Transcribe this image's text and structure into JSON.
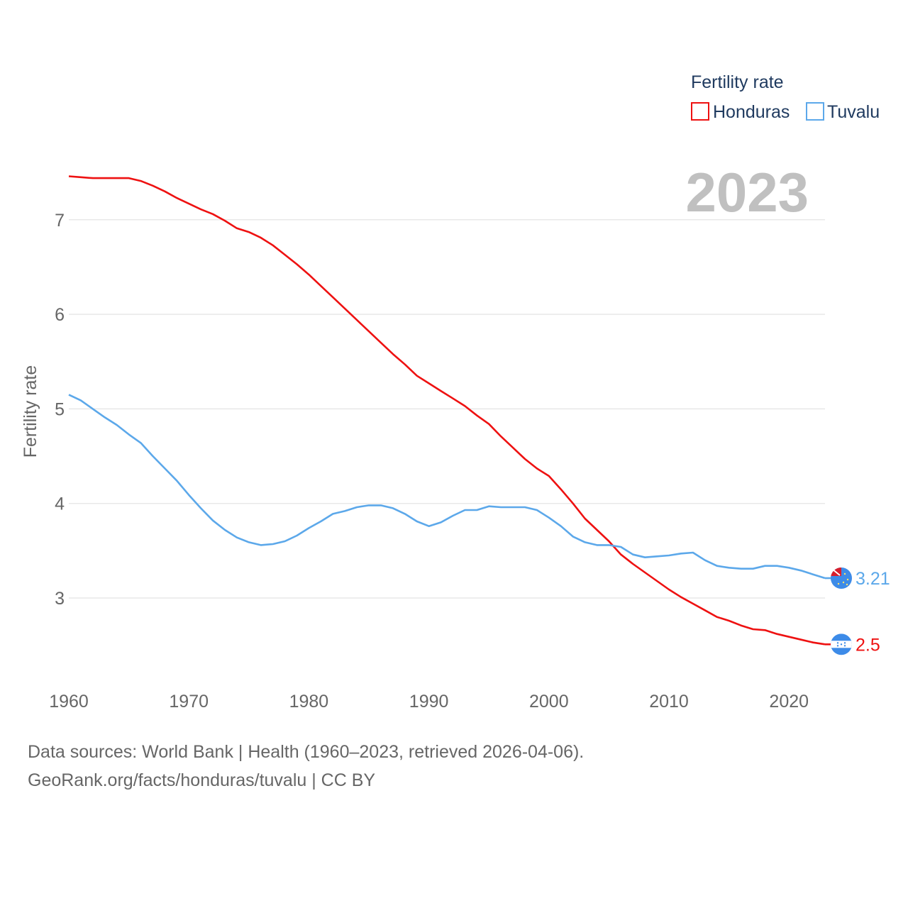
{
  "legend": {
    "title": "Fertility rate",
    "items": [
      {
        "name": "Honduras",
        "color": "#ee1111"
      },
      {
        "name": "Tuvalu",
        "color": "#5ca8ea"
      }
    ]
  },
  "year_label": "2023",
  "footer": {
    "line1": "Data sources: World Bank | Health (1960–2023, retrieved 2026-04-06).",
    "line2": "GeoRank.org/facts/honduras/tuvalu | CC BY"
  },
  "chart_data": {
    "type": "line",
    "title": "",
    "xlabel": "",
    "ylabel": "Fertility rate",
    "xlim": [
      1960,
      2023
    ],
    "ylim": [
      2.2,
      7.6
    ],
    "x_ticks": [
      "1960",
      "1970",
      "1980",
      "1990",
      "2000",
      "2010",
      "2020"
    ],
    "y_ticks": [
      "3",
      "4",
      "5",
      "6",
      "7"
    ],
    "grid": true,
    "legend_position": "top-right",
    "x": [
      1960,
      1961,
      1962,
      1963,
      1964,
      1965,
      1966,
      1967,
      1968,
      1969,
      1970,
      1971,
      1972,
      1973,
      1974,
      1975,
      1976,
      1977,
      1978,
      1979,
      1980,
      1981,
      1982,
      1983,
      1984,
      1985,
      1986,
      1987,
      1988,
      1989,
      1990,
      1991,
      1992,
      1993,
      1994,
      1995,
      1996,
      1997,
      1998,
      1999,
      2000,
      2001,
      2002,
      2003,
      2004,
      2005,
      2006,
      2007,
      2008,
      2009,
      2010,
      2011,
      2012,
      2013,
      2014,
      2015,
      2016,
      2017,
      2018,
      2019,
      2020,
      2021,
      2022,
      2023
    ],
    "series": [
      {
        "name": "Honduras",
        "color": "#ee1111",
        "end_label": "2.5",
        "values": [
          7.46,
          7.45,
          7.44,
          7.44,
          7.44,
          7.44,
          7.41,
          7.36,
          7.3,
          7.23,
          7.17,
          7.11,
          7.06,
          6.99,
          6.91,
          6.87,
          6.81,
          6.73,
          6.63,
          6.53,
          6.42,
          6.3,
          6.18,
          6.06,
          5.94,
          5.82,
          5.7,
          5.58,
          5.47,
          5.35,
          5.27,
          5.19,
          5.11,
          5.03,
          4.93,
          4.84,
          4.71,
          4.59,
          4.47,
          4.37,
          4.29,
          4.15,
          4.0,
          3.84,
          3.72,
          3.6,
          3.46,
          3.36,
          3.27,
          3.18,
          3.09,
          3.01,
          2.94,
          2.87,
          2.8,
          2.76,
          2.71,
          2.67,
          2.66,
          2.62,
          2.59,
          2.56,
          2.53,
          2.51
        ]
      },
      {
        "name": "Tuvalu",
        "color": "#5ca8ea",
        "end_label": "3.21",
        "values": [
          5.15,
          5.09,
          5.0,
          4.91,
          4.83,
          4.73,
          4.64,
          4.5,
          4.37,
          4.24,
          4.09,
          3.95,
          3.82,
          3.72,
          3.64,
          3.59,
          3.56,
          3.57,
          3.6,
          3.66,
          3.74,
          3.81,
          3.89,
          3.92,
          3.96,
          3.98,
          3.98,
          3.95,
          3.89,
          3.81,
          3.76,
          3.8,
          3.87,
          3.93,
          3.93,
          3.97,
          3.96,
          3.96,
          3.96,
          3.93,
          3.85,
          3.76,
          3.65,
          3.59,
          3.56,
          3.56,
          3.54,
          3.46,
          3.43,
          3.44,
          3.45,
          3.47,
          3.48,
          3.4,
          3.34,
          3.32,
          3.31,
          3.31,
          3.34,
          3.34,
          3.32,
          3.29,
          3.25,
          3.21
        ]
      }
    ]
  }
}
